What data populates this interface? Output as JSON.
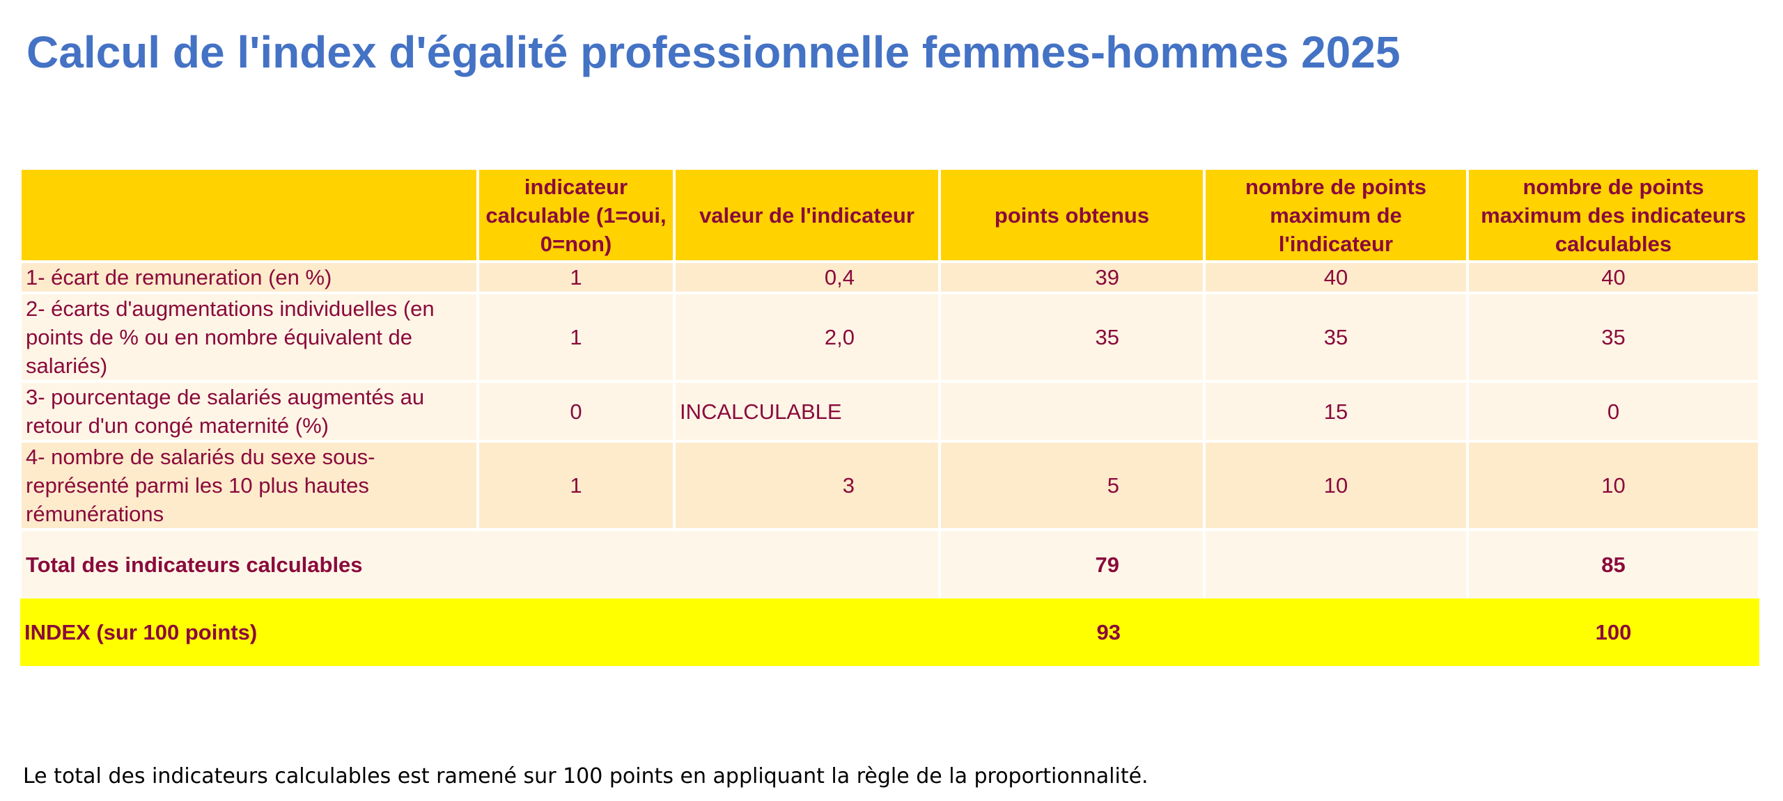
{
  "title": "Calcul de l'index d'égalité professionnelle femmes-hommes 2025",
  "table": {
    "header": [
      "indicateur calculable (1=oui, 0=non)",
      "valeur de l'indicateur",
      "points obtenus",
      "nombre de points maximum de l'indicateur",
      "nombre de points maximum des indicateurs calculables"
    ],
    "rows": [
      [
        "1- écart de remuneration (en %)",
        "1",
        "0,4",
        "39",
        "40",
        "40"
      ],
      [
        "2- écarts d'augmentations individuelles (en points de % ou en nombre équivalent de salariés)",
        "1",
        "2,0",
        "35",
        "35",
        "35"
      ],
      [
        "3- pourcentage de salariés augmentés au retour d'un congé maternité (%)",
        "0",
        "INCALCULABLE",
        null,
        "15",
        "0"
      ],
      [
        "4- nombre de salariés du sexe sous-représenté parmi les 10 plus hautes rémunérations",
        "1",
        "3",
        "5",
        "10",
        "10"
      ]
    ],
    "total": {
      "label": "Total des indicateurs calculables",
      "points": "79",
      "max": "85"
    },
    "index": {
      "label": "INDEX (sur 100 points)",
      "points": "93",
      "max": "100"
    }
  },
  "footnote": "Le total des indicateurs calculables est ramené sur 100 points en appliquant la règle de la proportionnalité."
}
